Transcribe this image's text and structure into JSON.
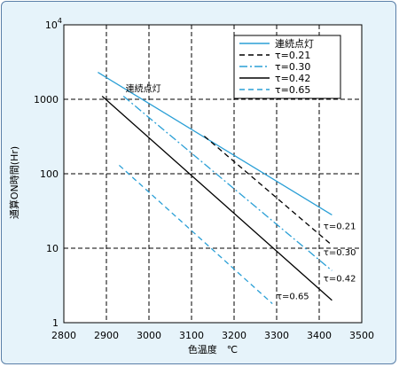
{
  "chart_data": {
    "type": "line",
    "title": "",
    "xlabel": "色温度　℃",
    "ylabel": "通算ON時間(Hr)",
    "xlim": [
      2800,
      3500
    ],
    "ylim": [
      1,
      10000
    ],
    "yscale": "log",
    "grid": true,
    "legend_position": "top-right",
    "x_ticks": [
      "2800",
      "2900",
      "3000",
      "3100",
      "3200",
      "3300",
      "3400",
      "3500"
    ],
    "y_ticks": [
      {
        "value": 1,
        "label": "1",
        "sup": ""
      },
      {
        "value": 10,
        "label": "10",
        "sup": ""
      },
      {
        "value": 100,
        "label": "100",
        "sup": ""
      },
      {
        "value": 1000,
        "label": "1000",
        "sup": ""
      },
      {
        "value": 10000,
        "label": "10",
        "sup": "4"
      }
    ],
    "series": [
      {
        "name": "連続点灯",
        "style": "solid",
        "color": "#2a9fd6",
        "x": [
          2880,
          3430
        ],
        "y": [
          2300,
          28
        ]
      },
      {
        "name": "τ=0.21",
        "style": "dashed",
        "color": "#000000",
        "x": [
          3130,
          3430
        ],
        "y": [
          320,
          11
        ]
      },
      {
        "name": "τ=0.30",
        "style": "dashdot",
        "color": "#2a9fd6",
        "x": [
          2940,
          3430
        ],
        "y": [
          1100,
          5
        ]
      },
      {
        "name": "τ=0.42",
        "style": "solid",
        "color": "#000000",
        "x": [
          2890,
          3430
        ],
        "y": [
          1100,
          2
        ]
      },
      {
        "name": "τ=0.65",
        "style": "dashed",
        "color": "#2a9fd6",
        "x": [
          2930,
          3290
        ],
        "y": [
          130,
          1.8
        ]
      }
    ],
    "annotations": [
      {
        "text": "連続点灯",
        "x": 2945,
        "y": 1400
      },
      {
        "text": "τ=0.21",
        "x": 3410,
        "y": 20
      },
      {
        "text": "τ=0.30",
        "x": 3410,
        "y": 9
      },
      {
        "text": "τ=0.42",
        "x": 3410,
        "y": 4
      },
      {
        "text": "τ=0.65",
        "x": 3300,
        "y": 2.3
      }
    ]
  }
}
